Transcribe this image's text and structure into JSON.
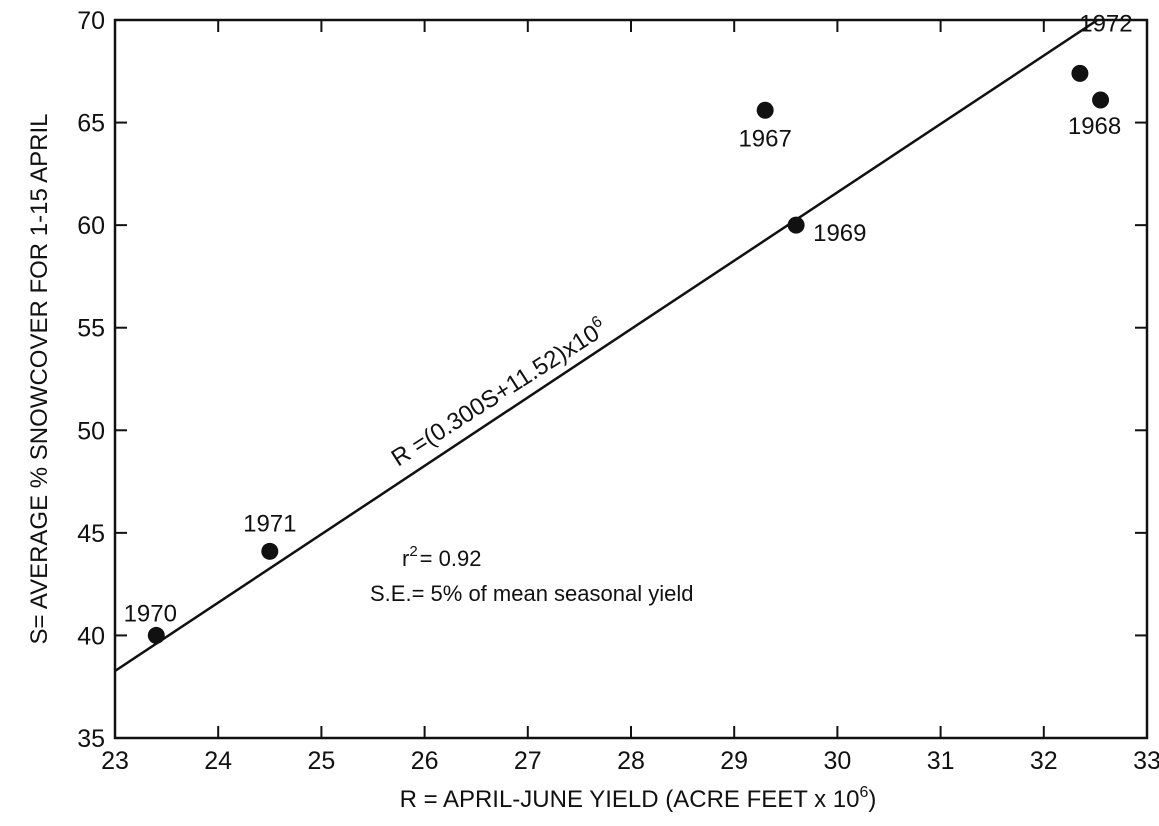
{
  "chart_data": {
    "type": "scatter",
    "xlabel": "R = APRIL-JUNE YIELD (ACRE FEET x 10",
    "xlabel_sup": "6",
    "xlabel_close": ")",
    "ylabel": "S= AVERAGE % SNOWCOVER FOR 1-15 APRIL",
    "xlim": [
      23,
      33
    ],
    "ylim": [
      35,
      70
    ],
    "x_ticks": [
      23,
      24,
      25,
      26,
      27,
      28,
      29,
      30,
      31,
      32,
      33
    ],
    "y_ticks": [
      35,
      40,
      45,
      50,
      55,
      60,
      65,
      70
    ],
    "grid": false,
    "points": [
      {
        "label": "1970",
        "x": 23.4,
        "y": 40.0
      },
      {
        "label": "1971",
        "x": 24.5,
        "y": 44.1
      },
      {
        "label": "1967",
        "x": 29.3,
        "y": 65.6
      },
      {
        "label": "1969",
        "x": 29.6,
        "y": 60.0
      },
      {
        "label": "1972",
        "x": 32.35,
        "y": 67.4
      },
      {
        "label": "1968",
        "x": 32.55,
        "y": 66.1
      }
    ],
    "regression": {
      "equation": "R =(0.300S+11.52)x10",
      "equation_sup": "6",
      "slope": 0.3,
      "intercept": 11.52,
      "x_range": [
        23,
        33
      ]
    },
    "annotations": {
      "r2_prefix": "r",
      "r2_sup": "2",
      "r2_value": "= 0.92",
      "se": "S.E.= 5% of mean  seasonal yield"
    }
  }
}
